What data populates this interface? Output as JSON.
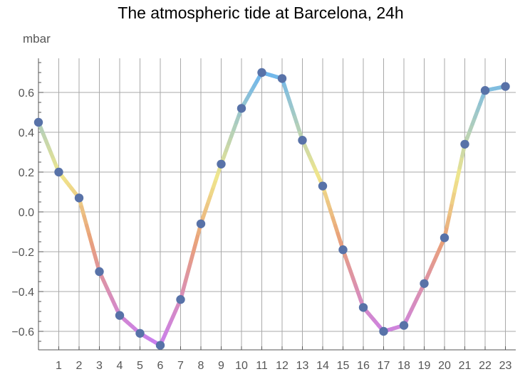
{
  "chart_data": {
    "type": "line",
    "title": "The atmospheric tide at Barcelona, 24h",
    "ylabel": "mbar",
    "xlabel": "",
    "x": [
      0,
      1,
      2,
      3,
      4,
      5,
      6,
      7,
      8,
      9,
      10,
      11,
      12,
      13,
      14,
      15,
      16,
      17,
      18,
      19,
      20,
      21,
      22,
      23
    ],
    "values": [
      0.45,
      0.2,
      0.07,
      -0.3,
      -0.52,
      -0.61,
      -0.67,
      -0.44,
      -0.06,
      0.24,
      0.52,
      0.7,
      0.67,
      0.36,
      0.13,
      -0.19,
      -0.48,
      -0.6,
      -0.57,
      -0.36,
      -0.13,
      0.34,
      0.61,
      0.63
    ],
    "xlim": [
      0,
      23.5
    ],
    "ylim": [
      -0.7,
      0.77
    ],
    "x_ticks": [
      "1",
      "2",
      "3",
      "4",
      "5",
      "6",
      "7",
      "8",
      "9",
      "10",
      "11",
      "12",
      "13",
      "14",
      "15",
      "16",
      "17",
      "18",
      "19",
      "20",
      "21",
      "22",
      "23"
    ],
    "y_ticks": [
      "-0.6",
      "-0.4",
      "-0.2",
      "0.0",
      "0.2",
      "0.4",
      "0.6"
    ],
    "y_tick_display": [
      "−0.6",
      "−0.4",
      "−0.2",
      "0.0",
      "0.2",
      "0.4",
      "0.6"
    ],
    "grid": true,
    "legend": "none",
    "colors": {
      "low": "#c97ef0",
      "mid_low": "#e9a07a",
      "mid": "#f0e68c",
      "high": "#6db6ee",
      "marker": "#5872a8",
      "grid": "#a9a9a9",
      "axis": "#555555"
    }
  }
}
